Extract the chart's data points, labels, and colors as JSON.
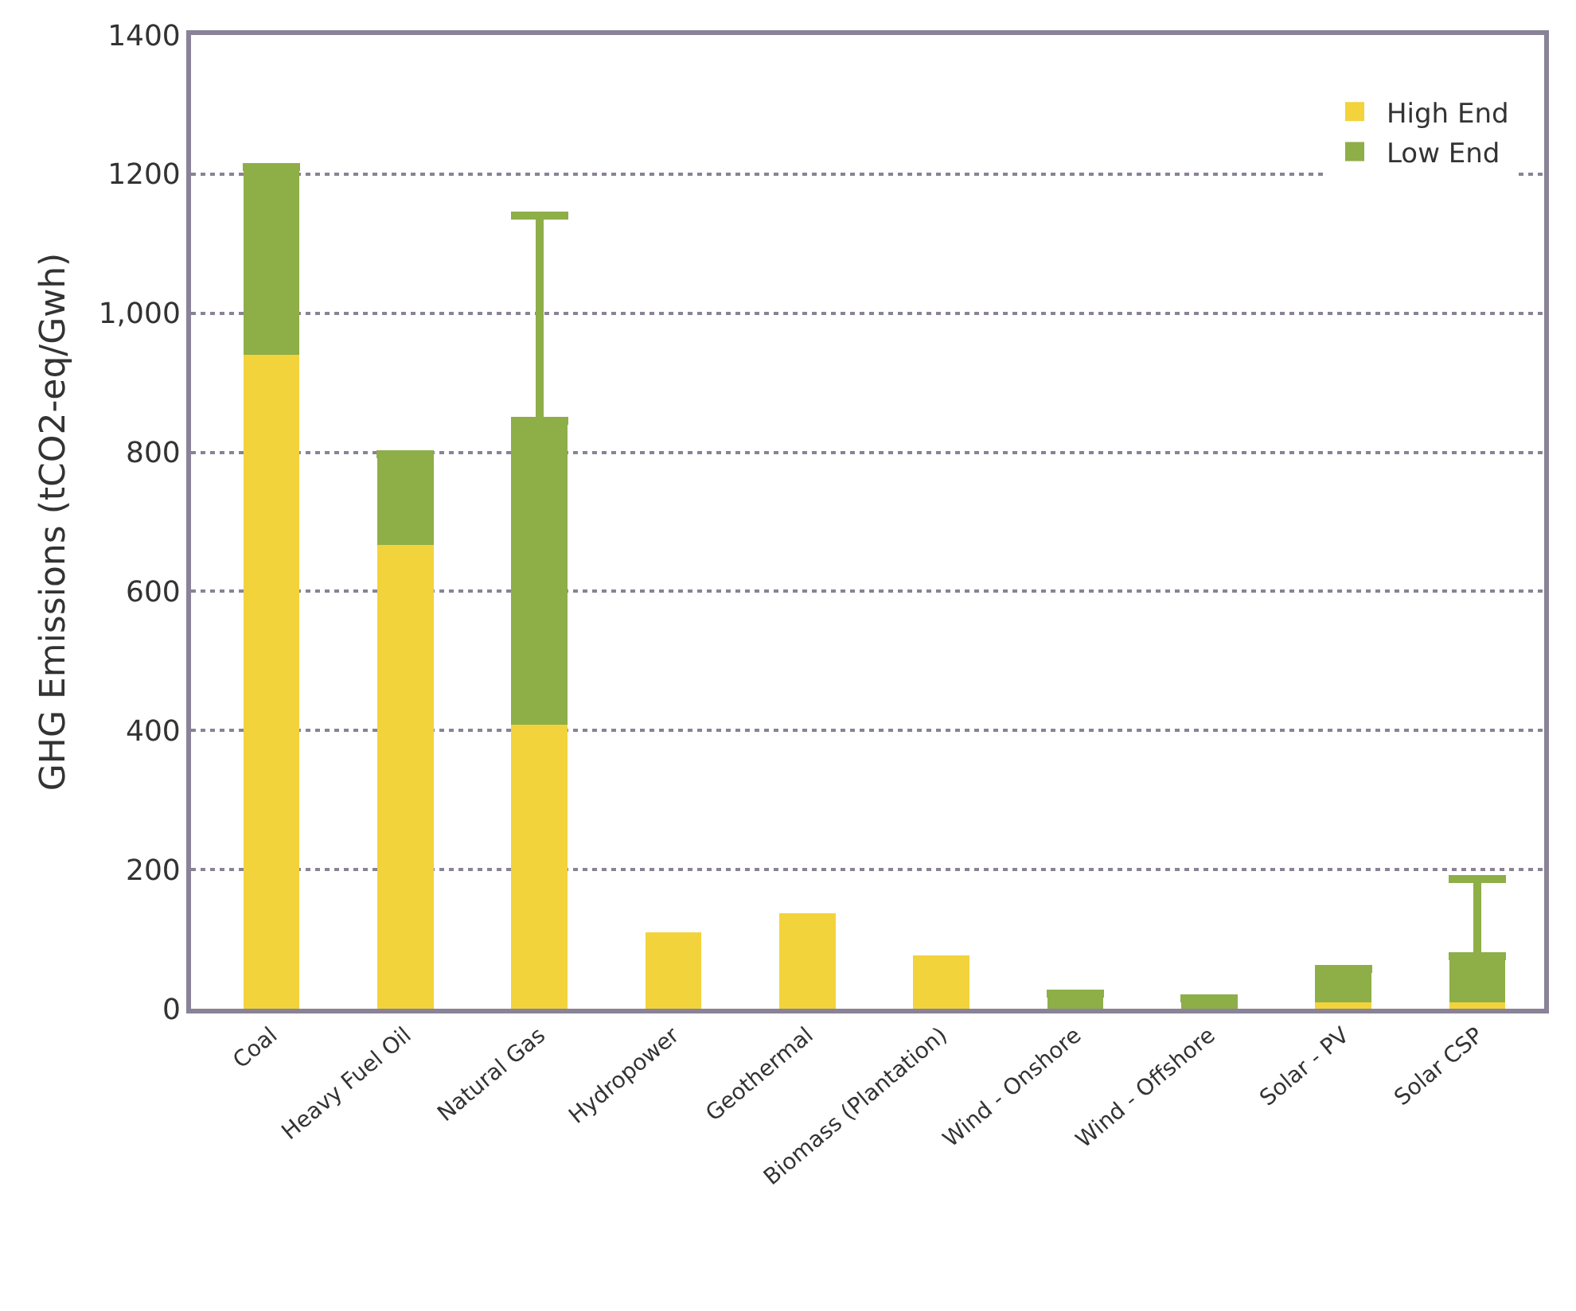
{
  "chart_data": {
    "type": "bar",
    "stacked": true,
    "ylabel": "GHG Emissions (tCO2-eq/Gwh)",
    "categories": [
      "Coal",
      "Heavy Fuel Oil",
      "Natural Gas",
      "Hydropower",
      "Geothermal",
      "Biomass (Plantation)",
      "Wind - Onshore",
      "Wind - Offshore",
      "Solar - PV",
      "Solar CSP"
    ],
    "series": [
      {
        "name": "High End",
        "color": "#f2d33c",
        "values": [
          940,
          667,
          408,
          110,
          137,
          77,
          null,
          null,
          9,
          9
        ]
      },
      {
        "name": "Low End",
        "color": "#8eae48",
        "values": [
          270,
          130,
          437,
          null,
          null,
          null,
          22,
          15,
          48,
          66
        ],
        "errors": [
          null,
          null,
          [
            845,
            1140
          ],
          null,
          null,
          null,
          null,
          null,
          null,
          [
            75,
            187
          ]
        ]
      }
    ],
    "ylim": [
      0,
      1400
    ],
    "yticks": [
      0,
      200,
      400,
      600,
      800,
      {
        "value": 1000,
        "label": "1,000"
      },
      1200,
      1400
    ],
    "grid": "y",
    "legend": "top right"
  }
}
